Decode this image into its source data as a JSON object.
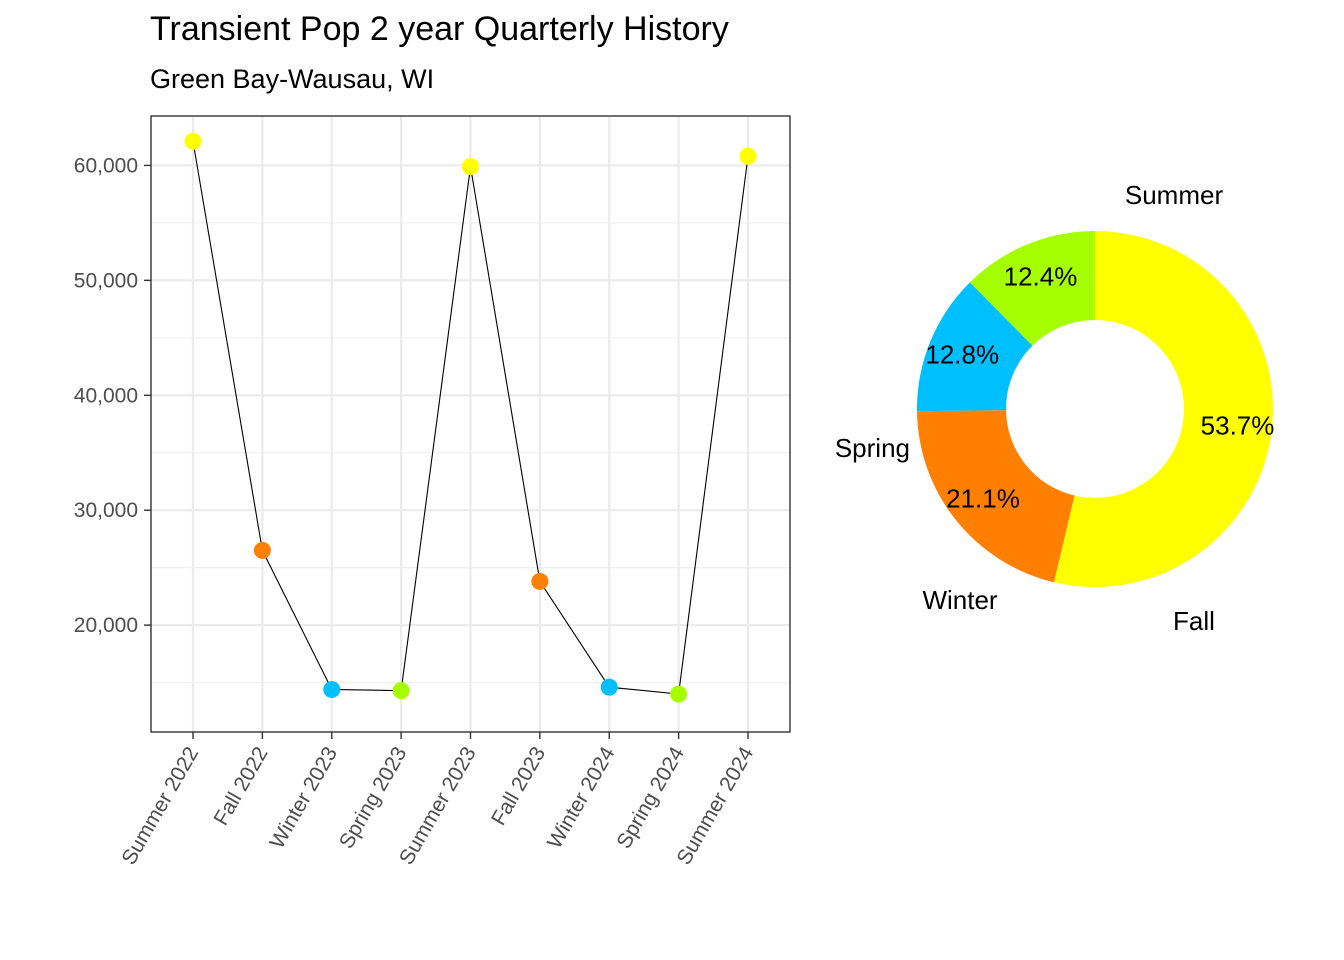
{
  "title": "Transient Pop 2 year Quarterly History",
  "subtitle": "Green Bay-Wausau, WI",
  "colors": {
    "Summer": "#FFFF00",
    "Fall": "#FF7F00",
    "Winter": "#00BFFF",
    "Spring": "#A6FF00"
  },
  "chart_data": [
    {
      "type": "line",
      "categories": [
        "Summer 2022",
        "Fall 2022",
        "Winter 2023",
        "Spring 2023",
        "Summer 2023",
        "Fall 2023",
        "Winter 2024",
        "Spring 2024",
        "Summer 2024"
      ],
      "seasons": [
        "Summer",
        "Fall",
        "Winter",
        "Spring",
        "Summer",
        "Fall",
        "Winter",
        "Spring",
        "Summer"
      ],
      "values": [
        62100,
        26500,
        14400,
        14300,
        59900,
        23800,
        14600,
        14000,
        60800
      ],
      "yticks": [
        20000,
        30000,
        40000,
        50000,
        60000
      ],
      "ytick_labels": [
        "20,000",
        "30,000",
        "40,000",
        "50,000",
        "60,000"
      ],
      "ylim": [
        10700,
        64300
      ],
      "grid": true
    },
    {
      "type": "pie",
      "donut": true,
      "slices": [
        {
          "label": "Summer",
          "pct_label": "53.7%",
          "value": 53.7
        },
        {
          "label": "Fall",
          "pct_label": "21.1%",
          "value": 21.1
        },
        {
          "label": "Winter",
          "pct_label": "12.8%",
          "value": 12.8
        },
        {
          "label": "Spring",
          "pct_label": "12.4%",
          "value": 12.4
        }
      ]
    }
  ]
}
